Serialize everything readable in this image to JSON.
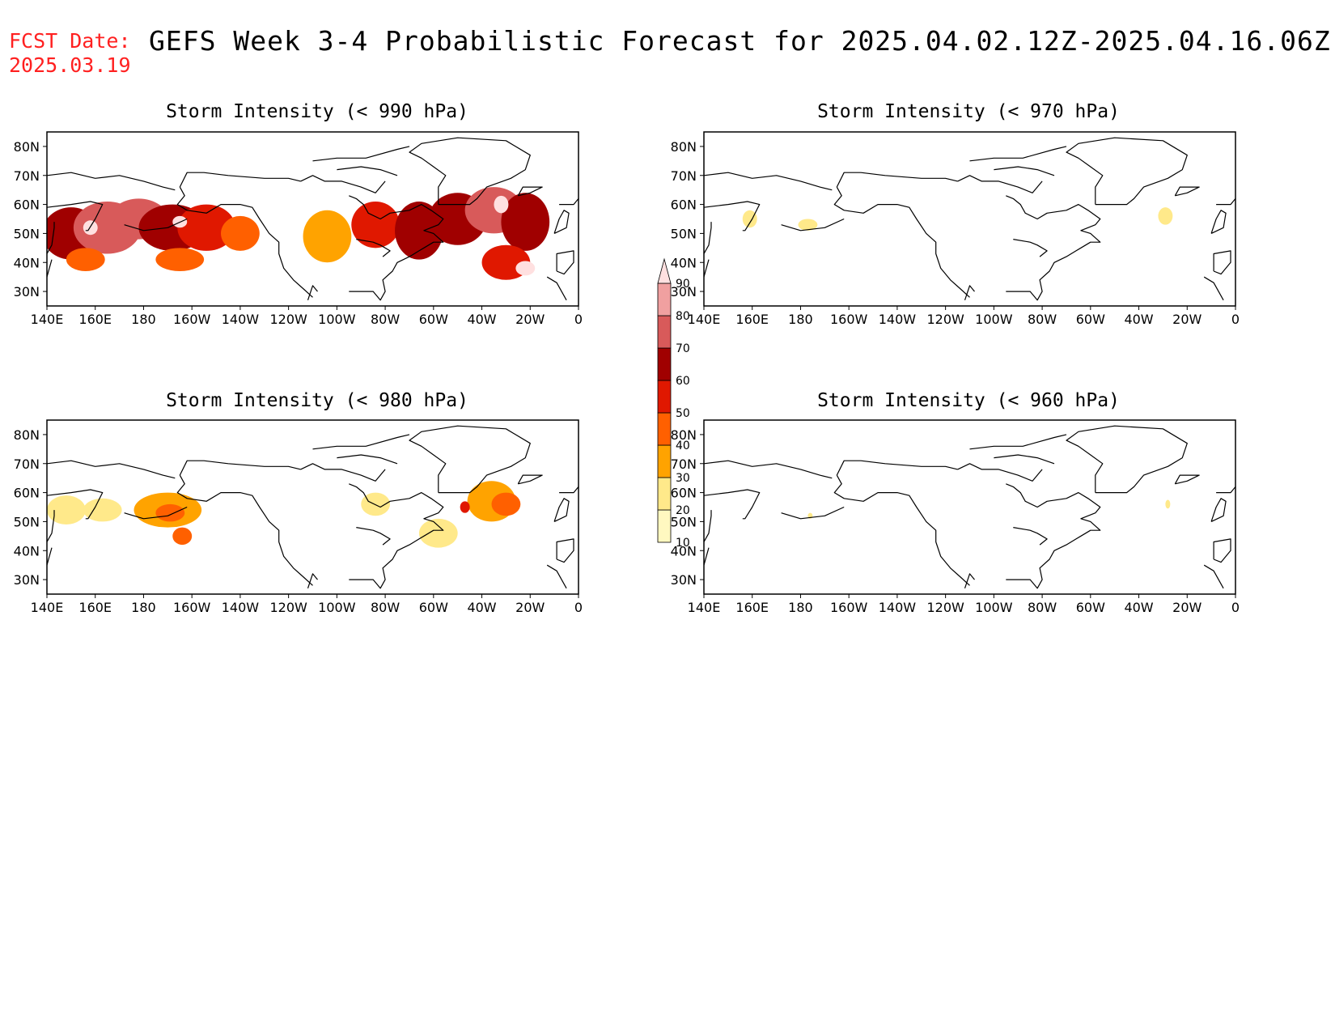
{
  "header": {
    "fcst_label": "FCST Date:",
    "fcst_date": "2025.03.19",
    "title": "GEFS Week 3-4 Probabilistic Forecast for 2025.04.02.12Z-2025.04.16.06Z"
  },
  "axes": {
    "lon_labels": [
      "140E",
      "160E",
      "180",
      "160W",
      "140W",
      "120W",
      "100W",
      "80W",
      "60W",
      "40W",
      "20W",
      "0"
    ],
    "lat_labels": [
      "80N",
      "70N",
      "60N",
      "50N",
      "40N",
      "30N"
    ]
  },
  "colorbar": {
    "levels": [
      "10",
      "20",
      "30",
      "40",
      "50",
      "60",
      "70",
      "80",
      "90"
    ],
    "colors": [
      "#fff8c0",
      "#ffe98a",
      "#ffa300",
      "#ff6000",
      "#e01800",
      "#a00000",
      "#d85a5a",
      "#f0a0a0",
      "#ffe0e0"
    ]
  },
  "chart_data": [
    {
      "type": "heatmap",
      "title": "Storm Intensity (< 990 hPa)",
      "lon_range": [
        140,
        360
      ],
      "lat_range": [
        25,
        85
      ],
      "blobs": [
        {
          "lon": 150,
          "lat": 50,
          "rlon": 12,
          "rlat": 9,
          "level": 5
        },
        {
          "lon": 165,
          "lat": 52,
          "rlon": 14,
          "rlat": 9,
          "level": 6
        },
        {
          "lon": 178,
          "lat": 55,
          "rlon": 12,
          "rlat": 7,
          "level": 6
        },
        {
          "lon": 192,
          "lat": 52,
          "rlon": 14,
          "rlat": 8,
          "level": 5
        },
        {
          "lon": 206,
          "lat": 52,
          "rlon": 12,
          "rlat": 8,
          "level": 4
        },
        {
          "lon": 220,
          "lat": 50,
          "rlon": 8,
          "rlat": 6,
          "level": 3
        },
        {
          "lon": 156,
          "lat": 41,
          "rlon": 8,
          "rlat": 4,
          "level": 3
        },
        {
          "lon": 195,
          "lat": 41,
          "rlon": 10,
          "rlat": 4,
          "level": 3
        },
        {
          "lon": 256,
          "lat": 49,
          "rlon": 10,
          "rlat": 9,
          "level": 2
        },
        {
          "lon": 276,
          "lat": 53,
          "rlon": 10,
          "rlat": 8,
          "level": 4
        },
        {
          "lon": 294,
          "lat": 51,
          "rlon": 10,
          "rlat": 10,
          "level": 5
        },
        {
          "lon": 310,
          "lat": 55,
          "rlon": 12,
          "rlat": 9,
          "level": 5
        },
        {
          "lon": 325,
          "lat": 58,
          "rlon": 12,
          "rlat": 8,
          "level": 6
        },
        {
          "lon": 338,
          "lat": 54,
          "rlon": 10,
          "rlat": 10,
          "level": 5
        },
        {
          "lon": 330,
          "lat": 40,
          "rlon": 10,
          "rlat": 6,
          "level": 4
        },
        {
          "lon": 338,
          "lat": 38,
          "rlon": 4,
          "rlat": 2.5,
          "level": 8
        },
        {
          "lon": 158,
          "lat": 52,
          "rlon": 3,
          "rlat": 2.5,
          "level": 8
        },
        {
          "lon": 195,
          "lat": 54,
          "rlon": 3,
          "rlat": 2,
          "level": 8
        },
        {
          "lon": 328,
          "lat": 60,
          "rlon": 3,
          "rlat": 3,
          "level": 8
        }
      ]
    },
    {
      "type": "heatmap",
      "title": "Storm Intensity (< 970 hPa)",
      "lon_range": [
        140,
        360
      ],
      "lat_range": [
        25,
        85
      ],
      "blobs": [
        {
          "lon": 159,
          "lat": 55,
          "rlon": 3,
          "rlat": 3,
          "level": 1
        },
        {
          "lon": 183,
          "lat": 53,
          "rlon": 4,
          "rlat": 2,
          "level": 1
        },
        {
          "lon": 331,
          "lat": 56,
          "rlon": 3,
          "rlat": 3,
          "level": 1
        }
      ]
    },
    {
      "type": "heatmap",
      "title": "Storm Intensity (< 980 hPa)",
      "lon_range": [
        140,
        360
      ],
      "lat_range": [
        25,
        85
      ],
      "blobs": [
        {
          "lon": 148,
          "lat": 54,
          "rlon": 8,
          "rlat": 5,
          "level": 1
        },
        {
          "lon": 163,
          "lat": 54,
          "rlon": 8,
          "rlat": 4,
          "level": 1
        },
        {
          "lon": 190,
          "lat": 54,
          "rlon": 14,
          "rlat": 6,
          "level": 2
        },
        {
          "lon": 191,
          "lat": 53,
          "rlon": 6,
          "rlat": 3,
          "level": 3
        },
        {
          "lon": 196,
          "lat": 45,
          "rlon": 4,
          "rlat": 3,
          "level": 3
        },
        {
          "lon": 276,
          "lat": 56,
          "rlon": 6,
          "rlat": 4,
          "level": 1
        },
        {
          "lon": 302,
          "lat": 46,
          "rlon": 8,
          "rlat": 5,
          "level": 1
        },
        {
          "lon": 324,
          "lat": 57,
          "rlon": 10,
          "rlat": 7,
          "level": 2
        },
        {
          "lon": 330,
          "lat": 56,
          "rlon": 6,
          "rlat": 4,
          "level": 3
        },
        {
          "lon": 313,
          "lat": 55,
          "rlon": 2,
          "rlat": 2,
          "level": 4
        }
      ]
    },
    {
      "type": "heatmap",
      "title": "Storm Intensity (< 960 hPa)",
      "lon_range": [
        140,
        360
      ],
      "lat_range": [
        25,
        85
      ],
      "blobs": [
        {
          "lon": 184,
          "lat": 52,
          "rlon": 1,
          "rlat": 1,
          "level": 1
        },
        {
          "lon": 332,
          "lat": 56,
          "rlon": 1,
          "rlat": 1.5,
          "level": 1
        }
      ]
    }
  ]
}
